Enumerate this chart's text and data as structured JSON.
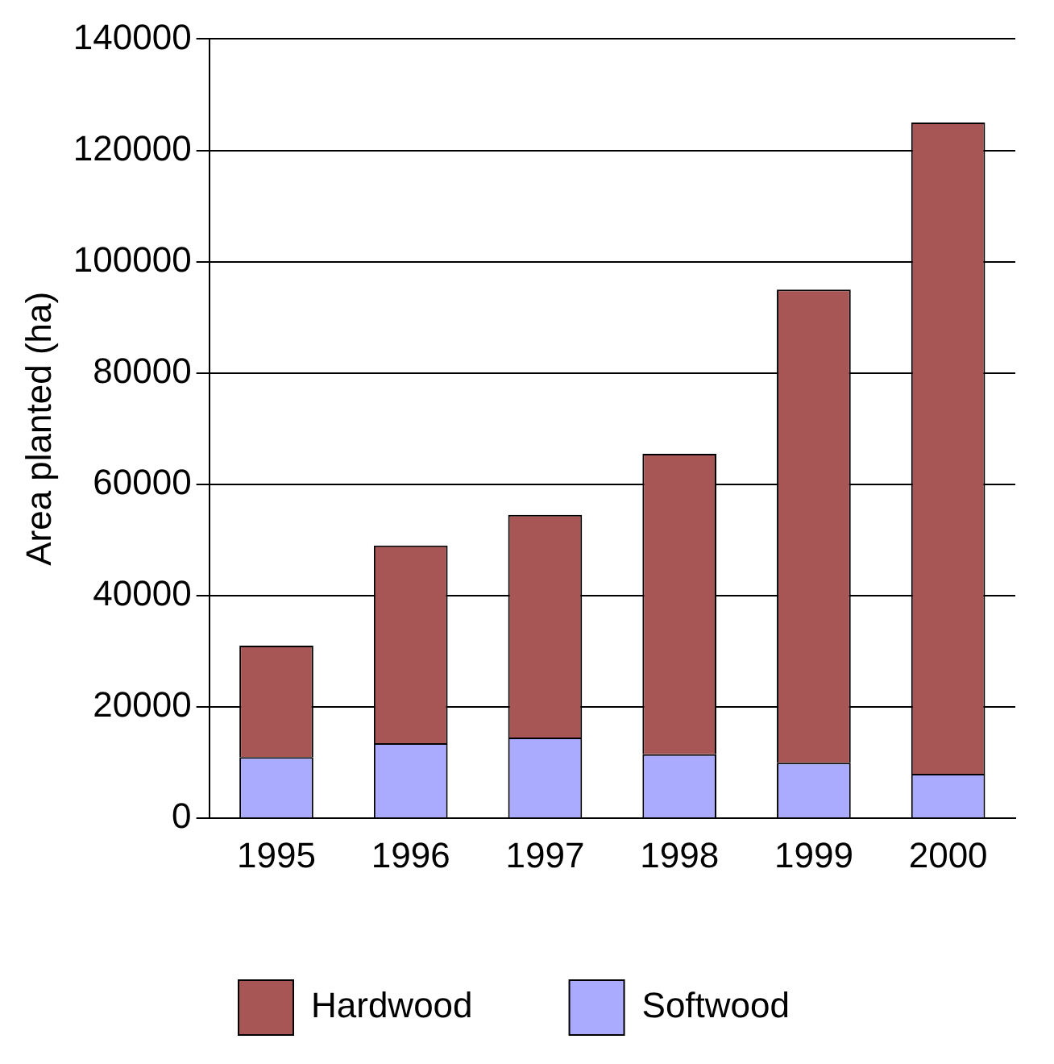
{
  "chart_data": {
    "type": "bar",
    "ylabel": "Area planted (ha)",
    "categories": [
      "1995",
      "1996",
      "1997",
      "1998",
      "1999",
      "2000"
    ],
    "stacked": true,
    "series": [
      {
        "name": "Softwood",
        "color": "#aaaaff",
        "values": [
          11000,
          13500,
          14500,
          11500,
          10000,
          8000
        ]
      },
      {
        "name": "Hardwood",
        "color": "#a85555",
        "values": [
          20000,
          35500,
          40000,
          54000,
          85000,
          117000
        ]
      }
    ],
    "ylim": [
      0,
      140000
    ],
    "yticks": [
      0,
      20000,
      40000,
      60000,
      80000,
      100000,
      120000,
      140000
    ],
    "grid": "y",
    "legend": "bottom"
  }
}
